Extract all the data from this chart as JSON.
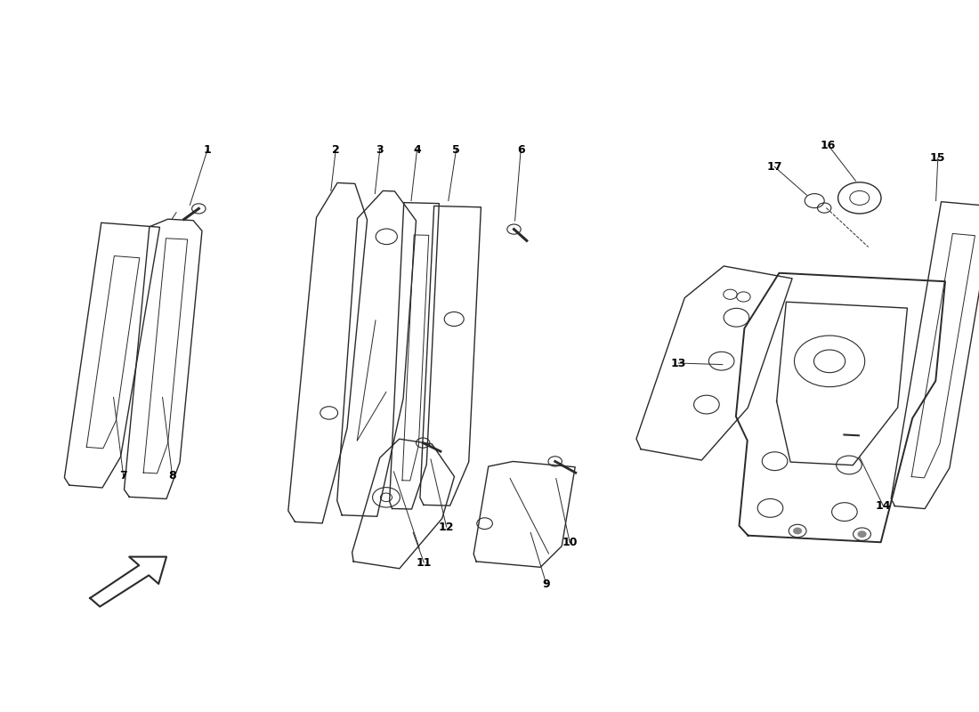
{
  "background_color": "#ffffff",
  "line_color": "#2a2a2a",
  "label_color": "#000000",
  "fig_width": 11.0,
  "fig_height": 8.0
}
